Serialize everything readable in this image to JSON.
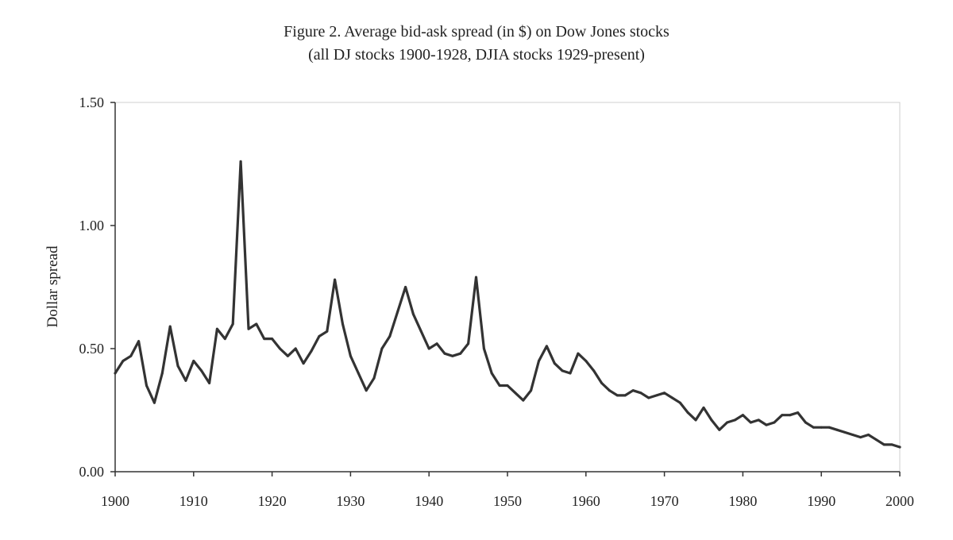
{
  "chart_data": {
    "type": "line",
    "title": "Figure 2.  Average bid-ask spread (in $) on Dow Jones stocks",
    "subtitle": "(all DJ stocks 1900-1928, DJIA stocks 1929-present)",
    "xlabel": "",
    "ylabel": "Dollar spread",
    "xlim": [
      1900,
      2000
    ],
    "ylim": [
      0,
      1.5
    ],
    "x_ticks": [
      1900,
      1910,
      1920,
      1930,
      1940,
      1950,
      1960,
      1970,
      1980,
      1990,
      2000
    ],
    "x_tick_labels": [
      "1900",
      "1910",
      "1920",
      "1930",
      "1940",
      "1950",
      "1960",
      "1970",
      "1980",
      "1990",
      "2000"
    ],
    "y_ticks": [
      0,
      0.5,
      1.0,
      1.5
    ],
    "y_tick_labels": [
      "0.00",
      "0.50",
      "1.00",
      "1.50"
    ],
    "grid": false,
    "series": [
      {
        "name": "Average bid-ask spread",
        "color": "#333333",
        "x": [
          1900,
          1901,
          1902,
          1903,
          1904,
          1905,
          1906,
          1907,
          1908,
          1909,
          1910,
          1911,
          1912,
          1913,
          1914,
          1915,
          1916,
          1917,
          1918,
          1919,
          1920,
          1921,
          1922,
          1923,
          1924,
          1925,
          1926,
          1927,
          1928,
          1929,
          1930,
          1931,
          1932,
          1933,
          1934,
          1935,
          1936,
          1937,
          1938,
          1939,
          1940,
          1941,
          1942,
          1943,
          1944,
          1945,
          1946,
          1947,
          1948,
          1949,
          1950,
          1951,
          1952,
          1953,
          1954,
          1955,
          1956,
          1957,
          1958,
          1959,
          1960,
          1961,
          1962,
          1963,
          1964,
          1965,
          1966,
          1967,
          1968,
          1969,
          1970,
          1971,
          1972,
          1973,
          1974,
          1975,
          1976,
          1977,
          1978,
          1979,
          1980,
          1981,
          1982,
          1983,
          1984,
          1985,
          1986,
          1987,
          1988,
          1989,
          1990,
          1991,
          1992,
          1993,
          1994,
          1995,
          1996,
          1997,
          1998,
          1999,
          2000
        ],
        "values": [
          0.4,
          0.45,
          0.47,
          0.53,
          0.35,
          0.28,
          0.4,
          0.59,
          0.43,
          0.37,
          0.45,
          0.41,
          0.36,
          0.58,
          0.54,
          0.6,
          1.26,
          0.58,
          0.6,
          0.54,
          0.54,
          0.5,
          0.47,
          0.5,
          0.44,
          0.49,
          0.55,
          0.57,
          0.78,
          0.6,
          0.47,
          0.4,
          0.33,
          0.38,
          0.5,
          0.55,
          0.65,
          0.75,
          0.64,
          0.57,
          0.5,
          0.52,
          0.48,
          0.47,
          0.48,
          0.52,
          0.79,
          0.5,
          0.4,
          0.35,
          0.35,
          0.32,
          0.29,
          0.33,
          0.45,
          0.51,
          0.44,
          0.41,
          0.4,
          0.48,
          0.45,
          0.41,
          0.36,
          0.33,
          0.31,
          0.31,
          0.33,
          0.32,
          0.3,
          0.31,
          0.32,
          0.3,
          0.28,
          0.24,
          0.21,
          0.26,
          0.21,
          0.17,
          0.2,
          0.21,
          0.23,
          0.2,
          0.21,
          0.19,
          0.2,
          0.23,
          0.23,
          0.24,
          0.2,
          0.18,
          0.18,
          0.18,
          0.17,
          0.16,
          0.15,
          0.14,
          0.15,
          0.13,
          0.11,
          0.11,
          0.1
        ]
      }
    ]
  }
}
